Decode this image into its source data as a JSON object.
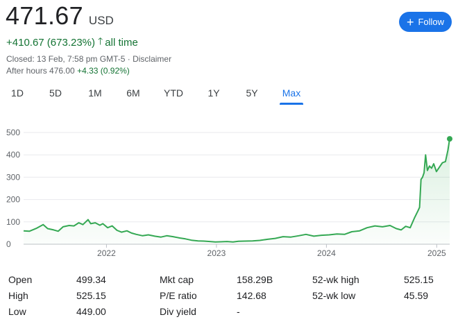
{
  "quote": {
    "price": "471.67",
    "currency": "USD",
    "change_text": "+410.67 (673.23%)",
    "change_arrow": "🡑",
    "change_period": "all time",
    "closed_text": "Closed: 13 Feb, 7:58 pm GMT-5 · Disclaimer",
    "after_hours_label": "After hours 476.00",
    "after_hours_change": "+4.33 (0.92%)"
  },
  "follow_button": {
    "plus": "+",
    "label": "Follow"
  },
  "tabs": [
    "1D",
    "5D",
    "1M",
    "6M",
    "YTD",
    "1Y",
    "5Y",
    "Max"
  ],
  "active_tab": "Max",
  "colors": {
    "line": "#34a853",
    "accent": "#1a73e8",
    "positive": "#137333",
    "grid": "#e8eaed"
  },
  "chart_data": {
    "type": "area",
    "title": "",
    "xlabel": "",
    "ylabel": "",
    "ylim": [
      0,
      500
    ],
    "yticks": [
      0,
      100,
      200,
      300,
      400,
      500
    ],
    "xticks": [
      "2022",
      "2023",
      "2024",
      "2025"
    ],
    "grid": true,
    "series": [
      {
        "x": [
          "2021-04-01",
          "2021-04-20",
          "2021-05-15",
          "2021-06-05",
          "2021-06-20",
          "2021-07-10",
          "2021-07-25",
          "2021-08-10",
          "2021-08-30",
          "2021-09-15",
          "2021-10-01",
          "2021-10-15",
          "2021-11-01",
          "2021-11-10",
          "2021-11-25",
          "2021-12-10",
          "2021-12-20",
          "2022-01-05",
          "2022-01-20",
          "2022-02-05",
          "2022-02-20",
          "2022-03-10",
          "2022-03-25",
          "2022-04-10",
          "2022-05-01",
          "2022-05-20",
          "2022-06-10",
          "2022-07-01",
          "2022-07-20",
          "2022-08-10",
          "2022-09-01",
          "2022-09-20",
          "2022-10-10",
          "2022-11-01",
          "2022-11-20",
          "2022-12-10",
          "2022-12-28",
          "2023-01-15",
          "2023-02-05",
          "2023-02-25",
          "2023-03-15",
          "2023-04-05",
          "2023-05-01",
          "2023-05-25",
          "2023-06-20",
          "2023-07-15",
          "2023-08-10",
          "2023-09-05",
          "2023-10-01",
          "2023-10-25",
          "2023-11-20",
          "2023-12-15",
          "2024-01-10",
          "2024-02-05",
          "2024-03-01",
          "2024-03-25",
          "2024-04-20",
          "2024-05-15",
          "2024-06-10",
          "2024-07-05",
          "2024-07-30",
          "2024-08-20",
          "2024-09-05",
          "2024-09-20",
          "2024-10-05",
          "2024-10-20",
          "2024-10-31",
          "2024-11-05",
          "2024-11-10",
          "2024-11-15",
          "2024-11-20",
          "2024-11-25",
          "2024-12-01",
          "2024-12-08",
          "2024-12-15",
          "2024-12-22",
          "2024-12-31",
          "2025-01-10",
          "2025-01-20",
          "2025-01-30",
          "2025-02-07",
          "2025-02-13"
        ],
        "y": [
          60,
          58,
          72,
          88,
          70,
          64,
          58,
          78,
          84,
          82,
          96,
          88,
          110,
          92,
          96,
          85,
          92,
          74,
          82,
          62,
          54,
          60,
          50,
          44,
          38,
          42,
          36,
          32,
          38,
          34,
          28,
          24,
          18,
          15,
          14,
          12,
          10,
          11,
          12,
          10,
          13,
          14,
          15,
          17,
          22,
          26,
          34,
          32,
          38,
          44,
          36,
          40,
          42,
          46,
          44,
          56,
          60,
          74,
          82,
          78,
          84,
          70,
          64,
          80,
          74,
          120,
          150,
          165,
          290,
          300,
          320,
          400,
          330,
          350,
          340,
          360,
          325,
          345,
          365,
          370,
          420,
          471.67
        ]
      }
    ],
    "last_point": 471.67
  },
  "stats": [
    [
      {
        "label": "Open",
        "value": "499.34"
      },
      {
        "label": "Mkt cap",
        "value": "158.29B"
      },
      {
        "label": "52-wk high",
        "value": "525.15"
      }
    ],
    [
      {
        "label": "High",
        "value": "525.15"
      },
      {
        "label": "P/E ratio",
        "value": "142.68"
      },
      {
        "label": "52-wk low",
        "value": "45.59"
      }
    ],
    [
      {
        "label": "Low",
        "value": "449.00"
      },
      {
        "label": "Div yield",
        "value": "-"
      },
      {
        "label": "",
        "value": ""
      }
    ]
  ]
}
